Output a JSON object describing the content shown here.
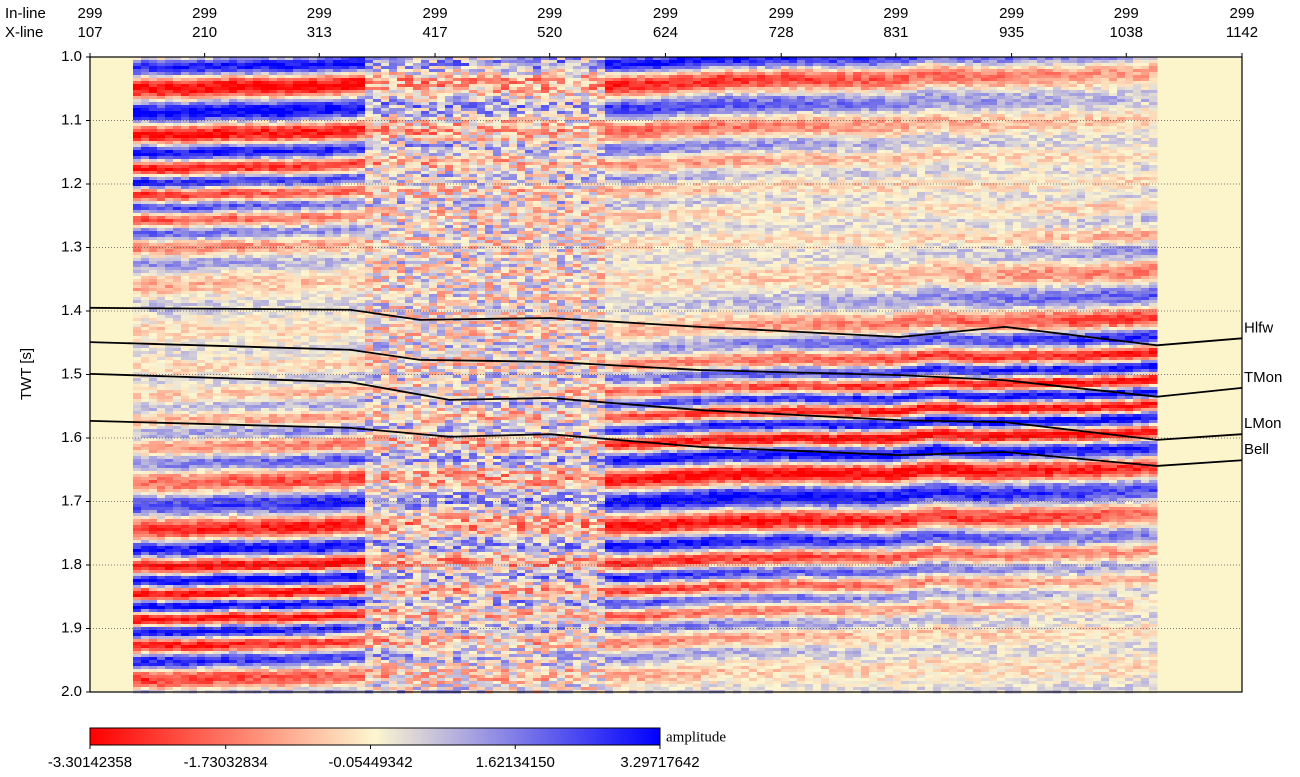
{
  "chart_data": {
    "type": "seismic",
    "xlabel": "X-line",
    "inline_label": "In-line",
    "ylabel": "TWT [s]",
    "xlim": [
      107,
      1142
    ],
    "xticks": [
      107,
      210,
      313,
      417,
      520,
      624,
      728,
      831,
      935,
      1038,
      1142
    ],
    "inline_ticks": [
      299,
      299,
      299,
      299,
      299,
      299,
      299,
      299,
      299,
      299,
      299
    ],
    "ylim": [
      1,
      2
    ],
    "yticks": [
      {
        "value": 1,
        "label": "1.0"
      },
      1.1,
      1.2,
      1.3,
      1.4,
      1.5,
      1.6,
      1.7,
      1.8,
      1.9,
      {
        "value": 2,
        "label": "2.0"
      }
    ],
    "grid": true,
    "background": "#fcf5cc",
    "horizons": [
      {
        "name": "Hlfw",
        "color": "#000000",
        "x": [
          107,
          340.6,
          403.5,
          520.3,
          655,
          834.7,
          929,
          1065.6,
          1142
        ],
        "values": [
          1.395,
          1.398,
          1.414,
          1.411,
          1.425,
          1.441,
          1.425,
          1.454,
          1.443
        ]
      },
      {
        "name": "TMon",
        "color": "#000000",
        "x": [
          107,
          340.6,
          403.5,
          520.3,
          655,
          834.7,
          929,
          1065.6,
          1142
        ],
        "values": [
          1.449,
          1.461,
          1.477,
          1.48,
          1.493,
          1.501,
          1.509,
          1.535,
          1.521
        ]
      },
      {
        "name": "LMon",
        "color": "#000000",
        "x": [
          107,
          340.6,
          430,
          520.3,
          655,
          834.7,
          929,
          1065.6,
          1142
        ],
        "values": [
          1.499,
          1.512,
          1.54,
          1.537,
          1.556,
          1.572,
          1.575,
          1.603,
          1.594
        ]
      },
      {
        "name": "Bell",
        "color": "#000000",
        "x": [
          107,
          340.6,
          430,
          520.3,
          655,
          834.7,
          929,
          1065.6,
          1142
        ],
        "values": [
          1.573,
          1.584,
          1.598,
          1.594,
          1.614,
          1.627,
          1.622,
          1.644,
          1.635
        ]
      }
    ],
    "colorbar": {
      "label": "amplitude",
      "lim": [
        -3.30142358,
        3.29717642
      ],
      "ticks": [
        -3.30142358,
        -1.73032834,
        -0.05449342,
        {
          "value": 1.6213415,
          "label": "1.62134150"
        },
        3.29717642
      ],
      "colors": [
        "#ff0000",
        "#fdf6d0",
        "#0000ff"
      ]
    }
  }
}
